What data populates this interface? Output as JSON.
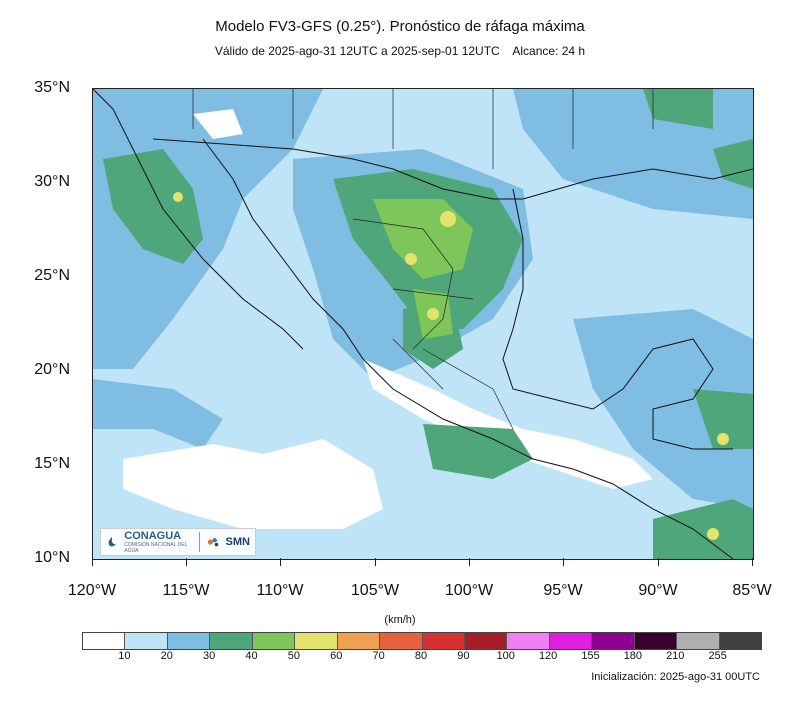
{
  "header": {
    "title": "Modelo FV3-GFS (0.25°). Pronóstico de ráfaga máxima",
    "subtitle": "Válido de 2025-ago-31 12UTC a 2025-sep-01 12UTC    Alcance: 24 h"
  },
  "map": {
    "lat_labels": [
      "35°N",
      "30°N",
      "25°N",
      "20°N",
      "15°N",
      "10°N"
    ],
    "lon_labels": [
      "120°W",
      "115°W",
      "110°W",
      "105°W",
      "100°W",
      "95°W",
      "90°W",
      "85°W"
    ],
    "extent": {
      "lon_min": -120,
      "lon_max": -85,
      "lat_min": 10,
      "lat_max": 35
    },
    "ocean_color": "#bfe3f7"
  },
  "legend": {
    "units": "(km/h)",
    "colors": [
      "#ffffff",
      "#bfe3f7",
      "#7fbde3",
      "#4fa67a",
      "#7fc65a",
      "#e3e36e",
      "#f0a050",
      "#e86040",
      "#d83030",
      "#a81e28",
      "#f080f0",
      "#e020e0",
      "#900090",
      "#3a0030",
      "#b0b0b0",
      "#404040"
    ],
    "labels": [
      "10",
      "20",
      "30",
      "40",
      "50",
      "60",
      "70",
      "80",
      "90",
      "100",
      "120",
      "155",
      "180",
      "210",
      "255"
    ]
  },
  "logos": {
    "conagua": "CONAGUA",
    "conagua_sub": "COMISIÓN NACIONAL DEL AGUA",
    "smn": "SMN"
  },
  "footer": {
    "init": "Inicialización: 2025-ago-31 00UTC"
  }
}
